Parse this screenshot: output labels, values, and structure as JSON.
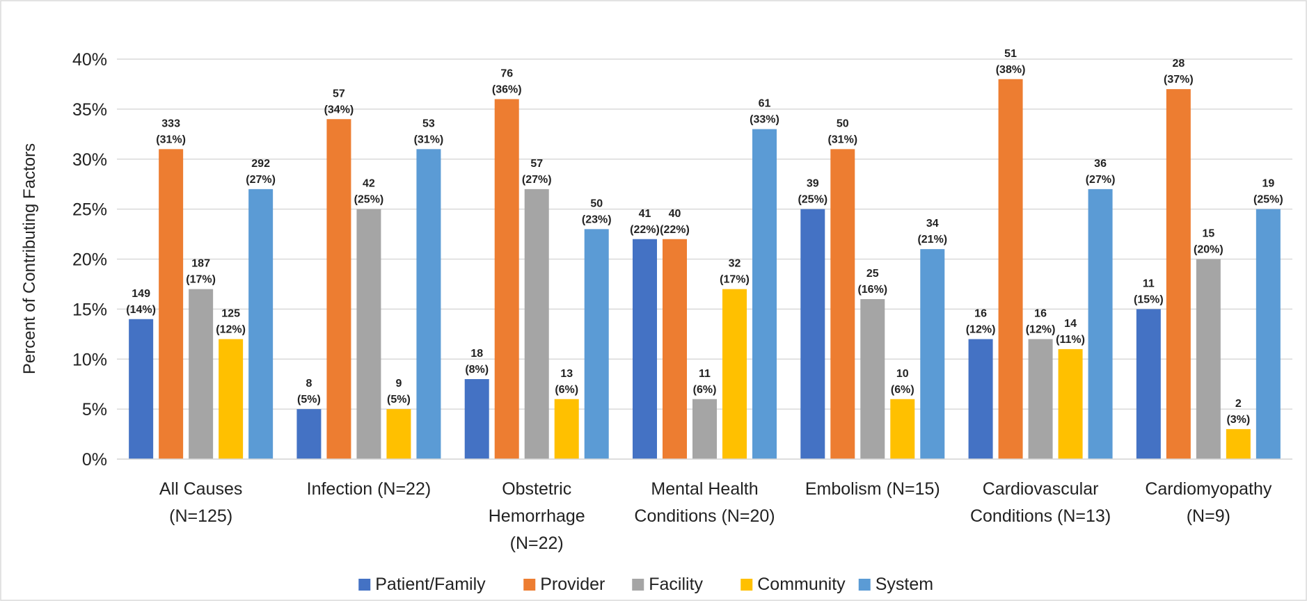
{
  "chart_data": {
    "type": "bar",
    "y_label": "Percent of Contributing Factors",
    "categories": [
      "All Causes\n(N=125)",
      "Infection (N=22)",
      "Obstetric\nHemorrhage\n(N=22)",
      "Mental Health\nConditions (N=20)",
      "Embolism (N=15)",
      "Cardiovascular\nConditions (N=13)",
      "Cardiomyopathy\n(N=9)"
    ],
    "series": [
      {
        "name": "Patient/Family",
        "color": "#4472c4",
        "values": [
          14,
          5,
          8,
          22,
          25,
          12,
          15
        ],
        "value_labels": [
          [
            "149",
            "(14%)"
          ],
          [
            "8",
            "(5%)"
          ],
          [
            "18",
            "(8%)"
          ],
          [
            "41",
            "(22%)"
          ],
          [
            "39",
            "(25%)"
          ],
          [
            "16",
            "(12%)"
          ],
          [
            "11",
            "(15%)"
          ]
        ]
      },
      {
        "name": "Provider",
        "color": "#ed7d31",
        "values": [
          31,
          34,
          36,
          22,
          31,
          38,
          37
        ],
        "value_labels": [
          [
            "333",
            "(31%)"
          ],
          [
            "57",
            "(34%)"
          ],
          [
            "76",
            "(36%)"
          ],
          [
            "40",
            "(22%)"
          ],
          [
            "50",
            "(31%)"
          ],
          [
            "51",
            "(38%)"
          ],
          [
            "28",
            "(37%)"
          ]
        ]
      },
      {
        "name": "Facility",
        "color": "#a5a5a5",
        "values": [
          17,
          25,
          27,
          6,
          16,
          12,
          20
        ],
        "value_labels": [
          [
            "187",
            "(17%)"
          ],
          [
            "42",
            "(25%)"
          ],
          [
            "57",
            "(27%)"
          ],
          [
            "11",
            "(6%)"
          ],
          [
            "25",
            "(16%)"
          ],
          [
            "16",
            "(12%)"
          ],
          [
            "15",
            "(20%)"
          ]
        ]
      },
      {
        "name": "Community",
        "color": "#ffc000",
        "values": [
          12,
          5,
          6,
          17,
          6,
          11,
          3
        ],
        "value_labels": [
          [
            "125",
            "(12%)"
          ],
          [
            "9",
            "(5%)"
          ],
          [
            "13",
            "(6%)"
          ],
          [
            "32",
            "(17%)"
          ],
          [
            "10",
            "(6%)"
          ],
          [
            "14",
            "(11%)"
          ],
          [
            "2",
            "(3%)"
          ]
        ]
      },
      {
        "name": "System",
        "color": "#5b9bd5",
        "values": [
          27,
          31,
          23,
          33,
          21,
          27,
          25
        ],
        "value_labels": [
          [
            "292",
            "(27%)"
          ],
          [
            "53",
            "(31%)"
          ],
          [
            "50",
            "(23%)"
          ],
          [
            "61",
            "(33%)"
          ],
          [
            "34",
            "(21%)"
          ],
          [
            "36",
            "(27%)"
          ],
          [
            "19",
            "(25%)"
          ]
        ]
      }
    ],
    "ylim": [
      0,
      40
    ],
    "yticks": [
      {
        "value": 0,
        "label": "0%"
      },
      {
        "value": 5,
        "label": "5%"
      },
      {
        "value": 10,
        "label": "10%"
      },
      {
        "value": 15,
        "label": "15%"
      },
      {
        "value": 20,
        "label": "20%"
      },
      {
        "value": 25,
        "label": "25%"
      },
      {
        "value": 30,
        "label": "30%"
      },
      {
        "value": 35,
        "label": "35%"
      },
      {
        "value": 40,
        "label": "40%"
      }
    ],
    "grid": true,
    "legend": "bottom"
  }
}
